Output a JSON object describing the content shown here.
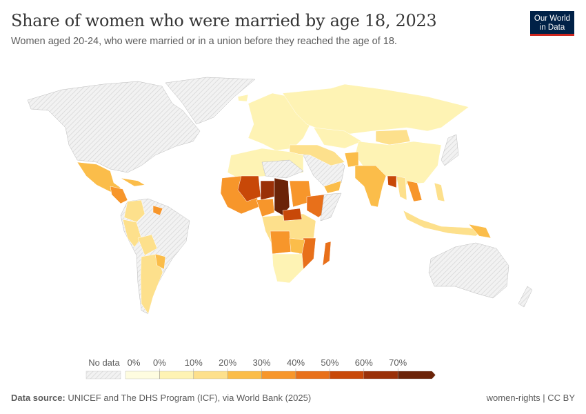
{
  "header": {
    "title": "Share of women who were married by age 18, 2023",
    "subtitle": "Women aged 20-24, who were married or in a union before they reached the age of 18.",
    "logo_line1": "Our World",
    "logo_line2": "in Data"
  },
  "legend": {
    "no_data_label": "No data",
    "tick_labels": [
      "0%",
      "0%",
      "10%",
      "20%",
      "30%",
      "40%",
      "50%",
      "60%",
      "70%"
    ],
    "bin_colors": [
      "#fefce0",
      "#fef3b4",
      "#fde08c",
      "#fbbd4a",
      "#f7962b",
      "#e8701a",
      "#c84808",
      "#9a3008",
      "#6b2308"
    ],
    "no_data_color": "#e6e6e6"
  },
  "footer": {
    "source_label": "Data source:",
    "source_text": "UNICEF and The DHS Program (ICF), via World Bank (2025)",
    "right_text": "women-rights | CC BY"
  }
}
